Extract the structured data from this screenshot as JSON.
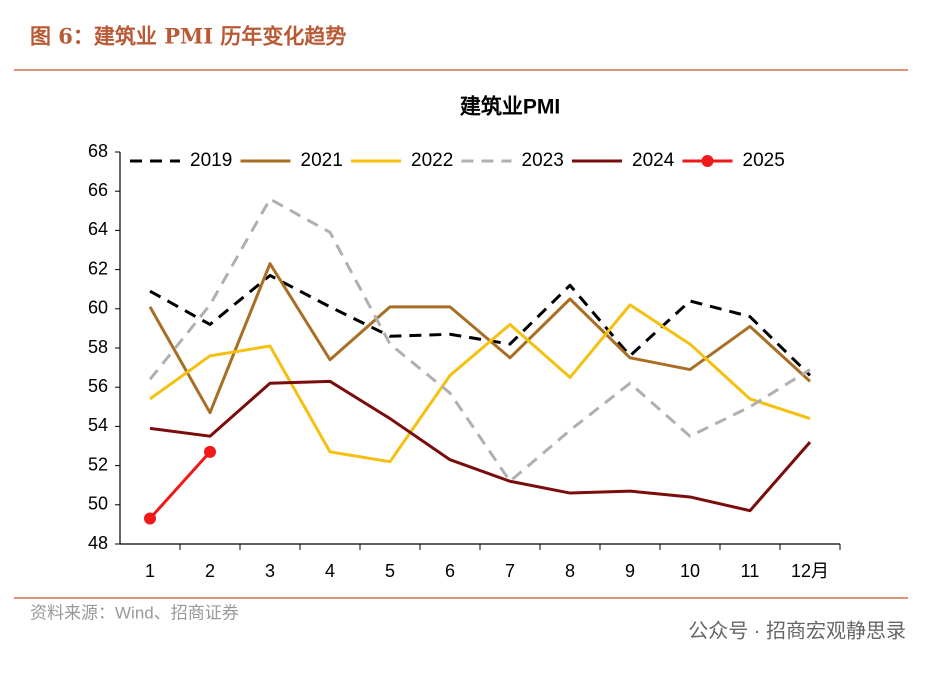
{
  "header": {
    "title": "图 6：建筑业 PMI 历年变化趋势"
  },
  "footer": {
    "source": "资料来源：Wind、招商证券",
    "watermark": "公众号 · 招商宏观静思录"
  },
  "chart_data": {
    "type": "line",
    "title": "建筑业PMI",
    "categories": [
      "1",
      "2",
      "3",
      "4",
      "5",
      "6",
      "7",
      "8",
      "9",
      "10",
      "11",
      "12月"
    ],
    "ylim": [
      48,
      68
    ],
    "yticks": [
      48,
      50,
      52,
      54,
      56,
      58,
      60,
      62,
      64,
      66,
      68
    ],
    "series": [
      {
        "name": "2019",
        "color": "#000000",
        "dashed": true,
        "values": [
          60.9,
          59.2,
          61.7,
          60.1,
          58.6,
          58.7,
          58.2,
          61.2,
          57.6,
          60.4,
          59.6,
          56.6
        ]
      },
      {
        "name": "2021",
        "color": "#a86f24",
        "values": [
          60.1,
          54.7,
          62.3,
          57.4,
          60.1,
          60.1,
          57.5,
          60.5,
          57.5,
          56.9,
          59.1,
          56.3
        ]
      },
      {
        "name": "2022",
        "color": "#f5c010",
        "values": [
          55.4,
          57.6,
          58.1,
          52.7,
          52.2,
          56.6,
          59.2,
          56.5,
          60.2,
          58.2,
          55.4,
          54.4
        ]
      },
      {
        "name": "2023",
        "color": "#b0b0b0",
        "dashed": true,
        "values": [
          56.4,
          60.2,
          65.6,
          63.9,
          58.2,
          55.7,
          51.2,
          53.8,
          56.2,
          53.5,
          55.0,
          56.9
        ]
      },
      {
        "name": "2024",
        "color": "#7a0c0c",
        "values": [
          53.9,
          53.5,
          56.2,
          56.3,
          54.4,
          52.3,
          51.2,
          50.6,
          50.7,
          50.4,
          49.7,
          53.2
        ]
      },
      {
        "name": "2025",
        "color": "#f01818",
        "marker": true,
        "values": [
          49.3,
          52.7,
          null,
          null,
          null,
          null,
          null,
          null,
          null,
          null,
          null,
          null
        ]
      }
    ]
  }
}
